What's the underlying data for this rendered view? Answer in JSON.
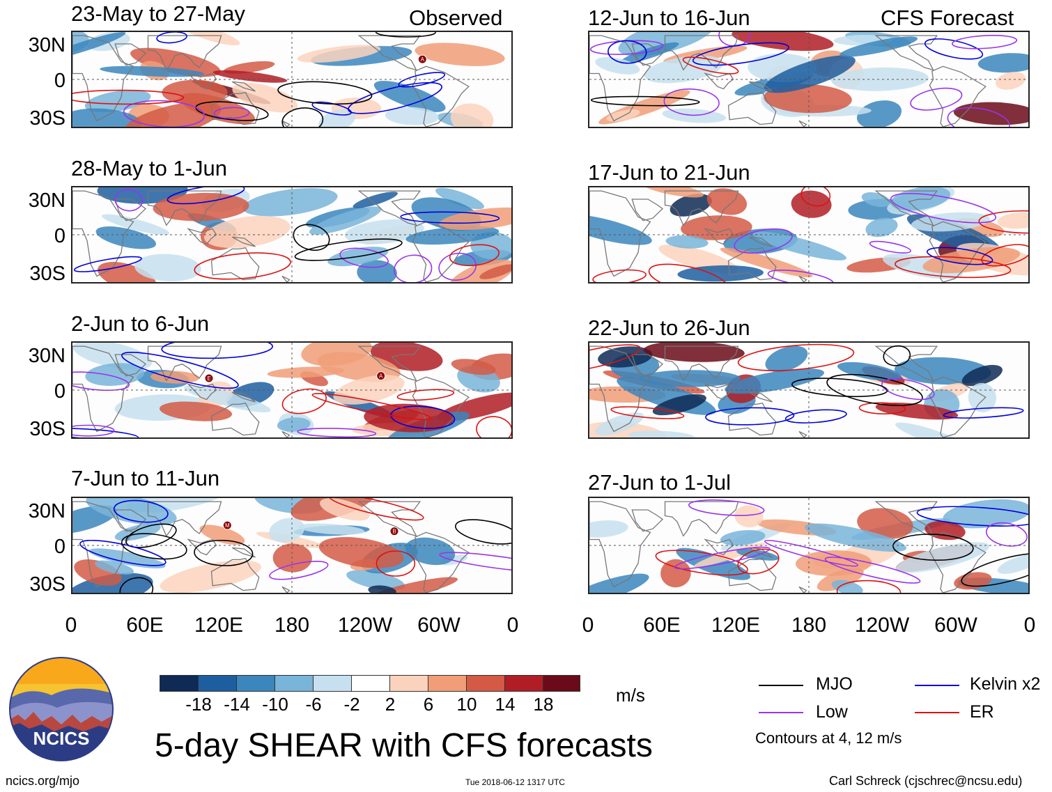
{
  "chart_data": {
    "type": "heatmap",
    "title": "5-day SHEAR with CFS forecasts",
    "variable": "Wind shear anomaly",
    "units": "m/s",
    "columns": [
      {
        "header": "Observed",
        "panels": [
          "23-May to 27-May",
          "28-May to 1-Jun",
          "2-Jun to 6-Jun",
          "7-Jun to 11-Jun"
        ]
      },
      {
        "header": "CFS Forecast",
        "panels": [
          "12-Jun to 16-Jun",
          "17-Jun to 21-Jun",
          "22-Jun to 26-Jun",
          "27-Jun to 1-Jul"
        ]
      }
    ],
    "lat_labels": [
      "30N",
      "0",
      "30S"
    ],
    "lat_range": [
      -40,
      40
    ],
    "lon_labels": [
      "0",
      "60E",
      "120E",
      "180",
      "120W",
      "60W",
      "0"
    ],
    "lon_range": [
      0,
      360
    ],
    "colorbar": {
      "ticks": [
        "-18",
        "-14",
        "-10",
        "-6",
        "-2",
        "2",
        "6",
        "10",
        "14",
        "18"
      ],
      "colors": [
        "#0e2a55",
        "#1d5ea0",
        "#3b86bd",
        "#79b4d9",
        "#c6e0ef",
        "#ffffff",
        "#fbd3bd",
        "#f09d78",
        "#d45a45",
        "#b01d25",
        "#6b0a18"
      ]
    },
    "legend": [
      {
        "label": "MJO",
        "color": "#000000"
      },
      {
        "label": "Kelvin x2",
        "color": "#0000dd"
      },
      {
        "label": "Low",
        "color": "#9933ee"
      },
      {
        "label": "ER",
        "color": "#dd1111"
      }
    ],
    "contour_note": "Contours at 4, 12 m/s",
    "storm_markers": [
      {
        "panel": "23-May to 27-May",
        "label": "A"
      },
      {
        "panel": "2-Jun to 6-Jun",
        "label": "E"
      },
      {
        "panel": "2-Jun to 6-Jun",
        "label": "A"
      },
      {
        "panel": "7-Jun to 11-Jun",
        "label": "M"
      },
      {
        "panel": "7-Jun to 11-Jun",
        "label": "B"
      }
    ]
  },
  "logo_text": "NCICS",
  "footer": {
    "url": "ncics.org/mjo",
    "timestamp": "Tue 2018-06-12 1317 UTC",
    "author": "Carl Schreck (cjschrec@ncsu.edu)"
  }
}
